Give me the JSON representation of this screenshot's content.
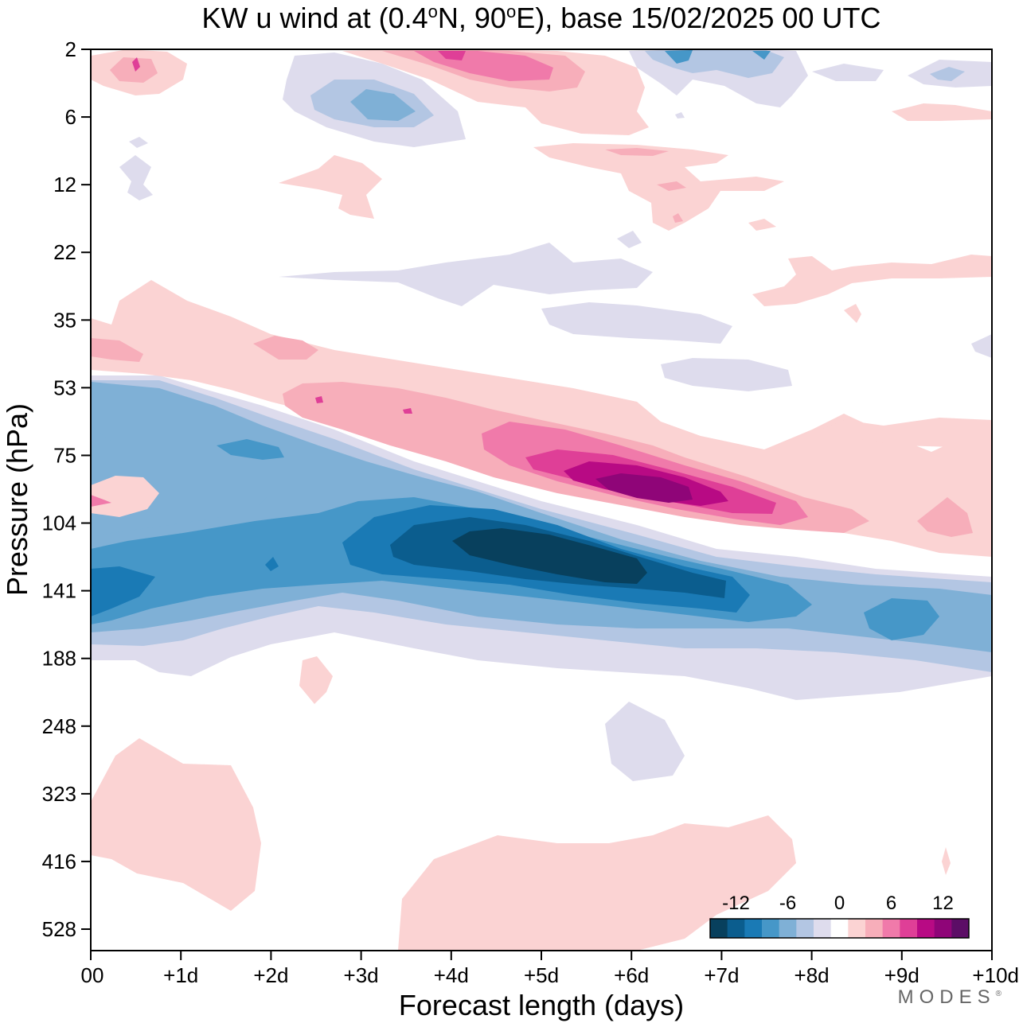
{
  "title": {
    "prefix": "KW u wind at (0.4",
    "deg1": "o",
    "mid": "N, 90",
    "deg2": "o",
    "suffix": "E),  base 15/02/2025  00 UTC"
  },
  "watermark": {
    "text": "MODES",
    "mark": "®"
  },
  "chart_data": {
    "type": "heatmap",
    "title": "KW u wind at (0.4°N, 90°E),  base 15/02/2025  00 UTC",
    "xlabel": "Forecast length (days)",
    "ylabel": "Pressure (hPa)",
    "x_ticks": [
      0,
      1,
      2,
      3,
      4,
      5,
      6,
      7,
      8,
      9,
      10
    ],
    "x_tick_labels": [
      "00",
      "+1d",
      "+2d",
      "+3d",
      "+4d",
      "+5d",
      "+6d",
      "+7d",
      "+8d",
      "+9d",
      "+10d"
    ],
    "y_tick_labels": [
      "2",
      "6",
      "12",
      "22",
      "35",
      "53",
      "75",
      "104",
      "141",
      "188",
      "248",
      "323",
      "416",
      "528"
    ],
    "xlim": [
      0,
      10
    ],
    "ylim_label": [
      "2",
      "528"
    ],
    "y_axis": "pressure levels, increasing downward",
    "colorbar": {
      "tick_labels": [
        "-12",
        "-6",
        "0",
        "6",
        "12"
      ],
      "levels": [
        -15,
        -12,
        -9,
        -6,
        -3,
        0,
        3,
        6,
        9,
        12,
        15
      ],
      "colors": [
        "#08405d",
        "#0b5d8e",
        "#1a7ab5",
        "#4697c8",
        "#7fb0d6",
        "#b3c6e3",
        "#dedced",
        "#ffffff",
        "#fbd3d3",
        "#f7aeba",
        "#f07aaa",
        "#df3f97",
        "#b80a84",
        "#8f0578",
        "#5c0d66"
      ]
    },
    "features": [
      {
        "name": "easterly jet core",
        "sign": "negative",
        "x_center": 4.9,
        "level_center": "≈120",
        "peak_value": -15
      },
      {
        "name": "westerly maximum",
        "sign": "positive",
        "x_center": 6.0,
        "level_center": "≈85",
        "peak_value": 13
      },
      {
        "name": "upper positive band",
        "sign": "positive",
        "x_center": 4.5,
        "level_center": "≈2",
        "peak_value": 9
      },
      {
        "name": "lower tropospheric positive",
        "sign": "positive",
        "x_center": 5.5,
        "level_center": "≈450",
        "peak_value": 2
      }
    ]
  }
}
